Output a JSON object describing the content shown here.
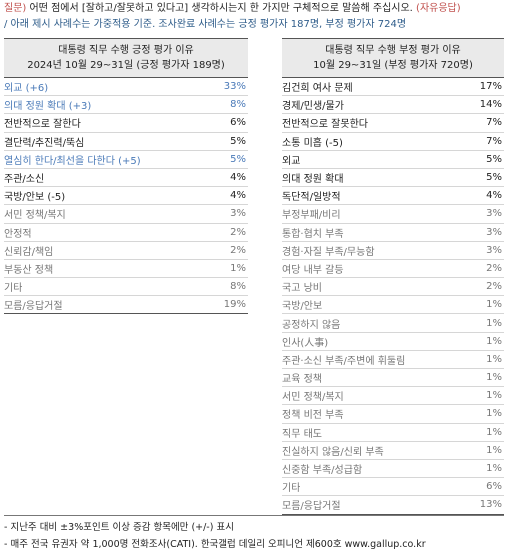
{
  "question": {
    "prefix": "질문)",
    "text": " 어떤 점에서 [잘하고/잘못하고 있다고] 생각하시는지 한 가지만 구체적으로 말씀해 주십시오.",
    "suffix": " (자유응답)",
    "note": "/ 아래 제시 사례수는 가중적용 기준. 조사완료 사례수는 긍정 평가자 187명, 부정 평가자 724명"
  },
  "left_table": {
    "title": "대통령 직무 수행 긍정 평가 이유",
    "subtitle": "2024년 10월 29~31일 (긍정 평가자 189명)",
    "rows": [
      {
        "label": "외교 (+6)",
        "value": "33%",
        "style": "blue"
      },
      {
        "label": "의대 정원 확대 (+3)",
        "value": "8%",
        "style": "blue"
      },
      {
        "label": "전반적으로 잘한다",
        "value": "6%",
        "style": "black"
      },
      {
        "label": "결단력/추진력/뚝심",
        "value": "5%",
        "style": "black"
      },
      {
        "label": "열심히 한다/최선을 다한다 (+5)",
        "value": "5%",
        "style": "blue"
      },
      {
        "label": "주관/소신",
        "value": "4%",
        "style": "black"
      },
      {
        "label": "국방/안보 (-5)",
        "value": "4%",
        "style": "black"
      },
      {
        "label": "서민 정책/복지",
        "value": "3%",
        "style": "gray"
      },
      {
        "label": "안정적",
        "value": "2%",
        "style": "gray"
      },
      {
        "label": "신뢰감/책임",
        "value": "2%",
        "style": "gray"
      },
      {
        "label": "부동산 정책",
        "value": "1%",
        "style": "gray"
      },
      {
        "label": "기타",
        "value": "8%",
        "style": "gray"
      },
      {
        "label": "모름/응답거절",
        "value": "19%",
        "style": "gray"
      }
    ]
  },
  "right_table": {
    "title": "대통령 직무 수행 부정 평가 이유",
    "subtitle": "10월 29~31일 (부정 평가자 720명)",
    "rows": [
      {
        "label": "김건희 여사 문제",
        "value": "17%",
        "style": "black"
      },
      {
        "label": "경제/민생/물가",
        "value": "14%",
        "style": "black"
      },
      {
        "label": "전반적으로 잘못한다",
        "value": "7%",
        "style": "black"
      },
      {
        "label": "소통 미흡 (-5)",
        "value": "7%",
        "style": "black"
      },
      {
        "label": "외교",
        "value": "5%",
        "style": "black"
      },
      {
        "label": "의대 정원 확대",
        "value": "5%",
        "style": "black"
      },
      {
        "label": "독단적/일방적",
        "value": "4%",
        "style": "black"
      },
      {
        "label": "부정부패/비리",
        "value": "3%",
        "style": "gray"
      },
      {
        "label": "통합·협치 부족",
        "value": "3%",
        "style": "gray"
      },
      {
        "label": "경험·자질 부족/무능함",
        "value": "3%",
        "style": "gray"
      },
      {
        "label": "여당 내부 갈등",
        "value": "2%",
        "style": "gray"
      },
      {
        "label": "국고 낭비",
        "value": "2%",
        "style": "gray"
      },
      {
        "label": "국방/안보",
        "value": "1%",
        "style": "gray"
      },
      {
        "label": "공정하지 않음",
        "value": "1%",
        "style": "gray"
      },
      {
        "label": "인사(人事)",
        "value": "1%",
        "style": "gray"
      },
      {
        "label": "주관·소신 부족/주변에 휘둘림",
        "value": "1%",
        "style": "gray"
      },
      {
        "label": "교육 정책",
        "value": "1%",
        "style": "gray"
      },
      {
        "label": "서민 정책/복지",
        "value": "1%",
        "style": "gray"
      },
      {
        "label": "정책 비전 부족",
        "value": "1%",
        "style": "gray"
      },
      {
        "label": "직무 태도",
        "value": "1%",
        "style": "gray"
      },
      {
        "label": "진실하지 않음/신뢰 부족",
        "value": "1%",
        "style": "gray"
      },
      {
        "label": "신중함 부족/성급함",
        "value": "1%",
        "style": "gray"
      },
      {
        "label": "기타",
        "value": "6%",
        "style": "gray"
      },
      {
        "label": "모름/응답거절",
        "value": "13%",
        "style": "gray"
      }
    ]
  },
  "footer": {
    "line1": "- 지난주 대비 ±3%포인트 이상 증감 항목에만 (+/-) 표시",
    "line2": "- 매주 전국 유권자 약 1,000명 전화조사(CATI). 한국갤럽 데일리 오피니언 제600호 www.gallup.co.kr"
  }
}
